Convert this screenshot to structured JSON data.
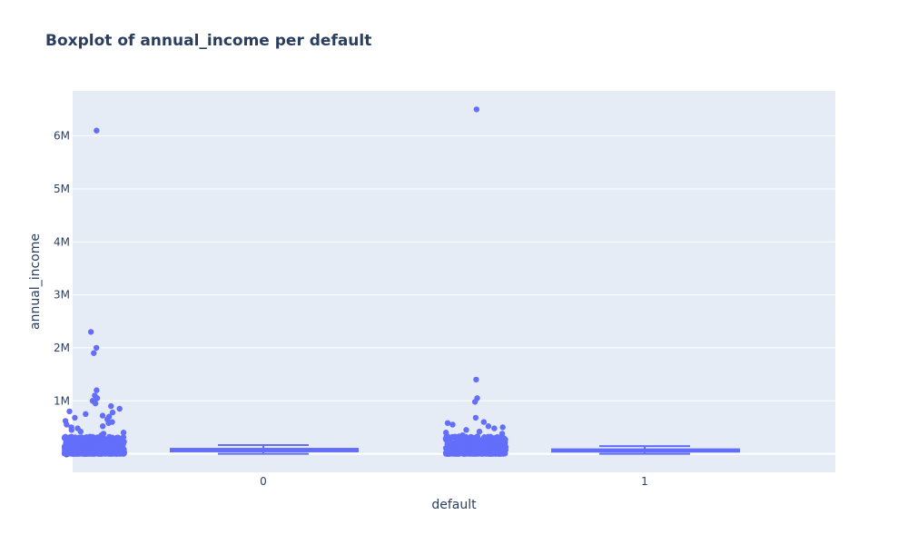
{
  "chart_data": {
    "type": "box",
    "title": "Boxplot of annual_income per default",
    "xlabel": "default",
    "ylabel": "annual_income",
    "categories": [
      "0",
      "1"
    ],
    "ylim": [
      -350000,
      6850000
    ],
    "y_ticks": [
      0,
      1000000,
      2000000,
      3000000,
      4000000,
      5000000,
      6000000
    ],
    "y_tick_labels": [
      "0",
      "1M",
      "2M",
      "3M",
      "4M",
      "5M",
      "6M"
    ],
    "grid": true,
    "legend": "none",
    "colors": {
      "plot_bg": "#e5ecf6",
      "series": "#636efa",
      "grid": "#ffffff",
      "text": "#2a3f5f"
    },
    "boxes": [
      {
        "category": "0",
        "min": 0,
        "q1": 45000,
        "median": 65000,
        "q3": 95000,
        "max": 165000,
        "outliers_high": [
          6100000,
          2300000,
          2000000,
          1900000,
          1200000,
          1100000,
          1050000,
          1000000,
          980000,
          950000,
          900000,
          850000,
          800000,
          780000,
          750000,
          720000,
          700000,
          680000,
          650000,
          620000,
          600000,
          580000,
          550000,
          520000,
          500000,
          480000,
          450000,
          420000,
          400000,
          380000,
          350000,
          320000,
          300000,
          280000,
          260000,
          240000,
          220000,
          200000,
          185000,
          170000
        ]
      },
      {
        "category": "1",
        "min": 0,
        "q1": 40000,
        "median": 58000,
        "q3": 85000,
        "max": 145000,
        "outliers_high": [
          6500000,
          1400000,
          1050000,
          980000,
          680000,
          600000,
          580000,
          550000,
          520000,
          500000,
          480000,
          450000,
          420000,
          400000,
          380000,
          350000,
          320000,
          300000,
          280000,
          260000,
          240000,
          220000,
          200000,
          180000,
          160000
        ]
      }
    ]
  }
}
